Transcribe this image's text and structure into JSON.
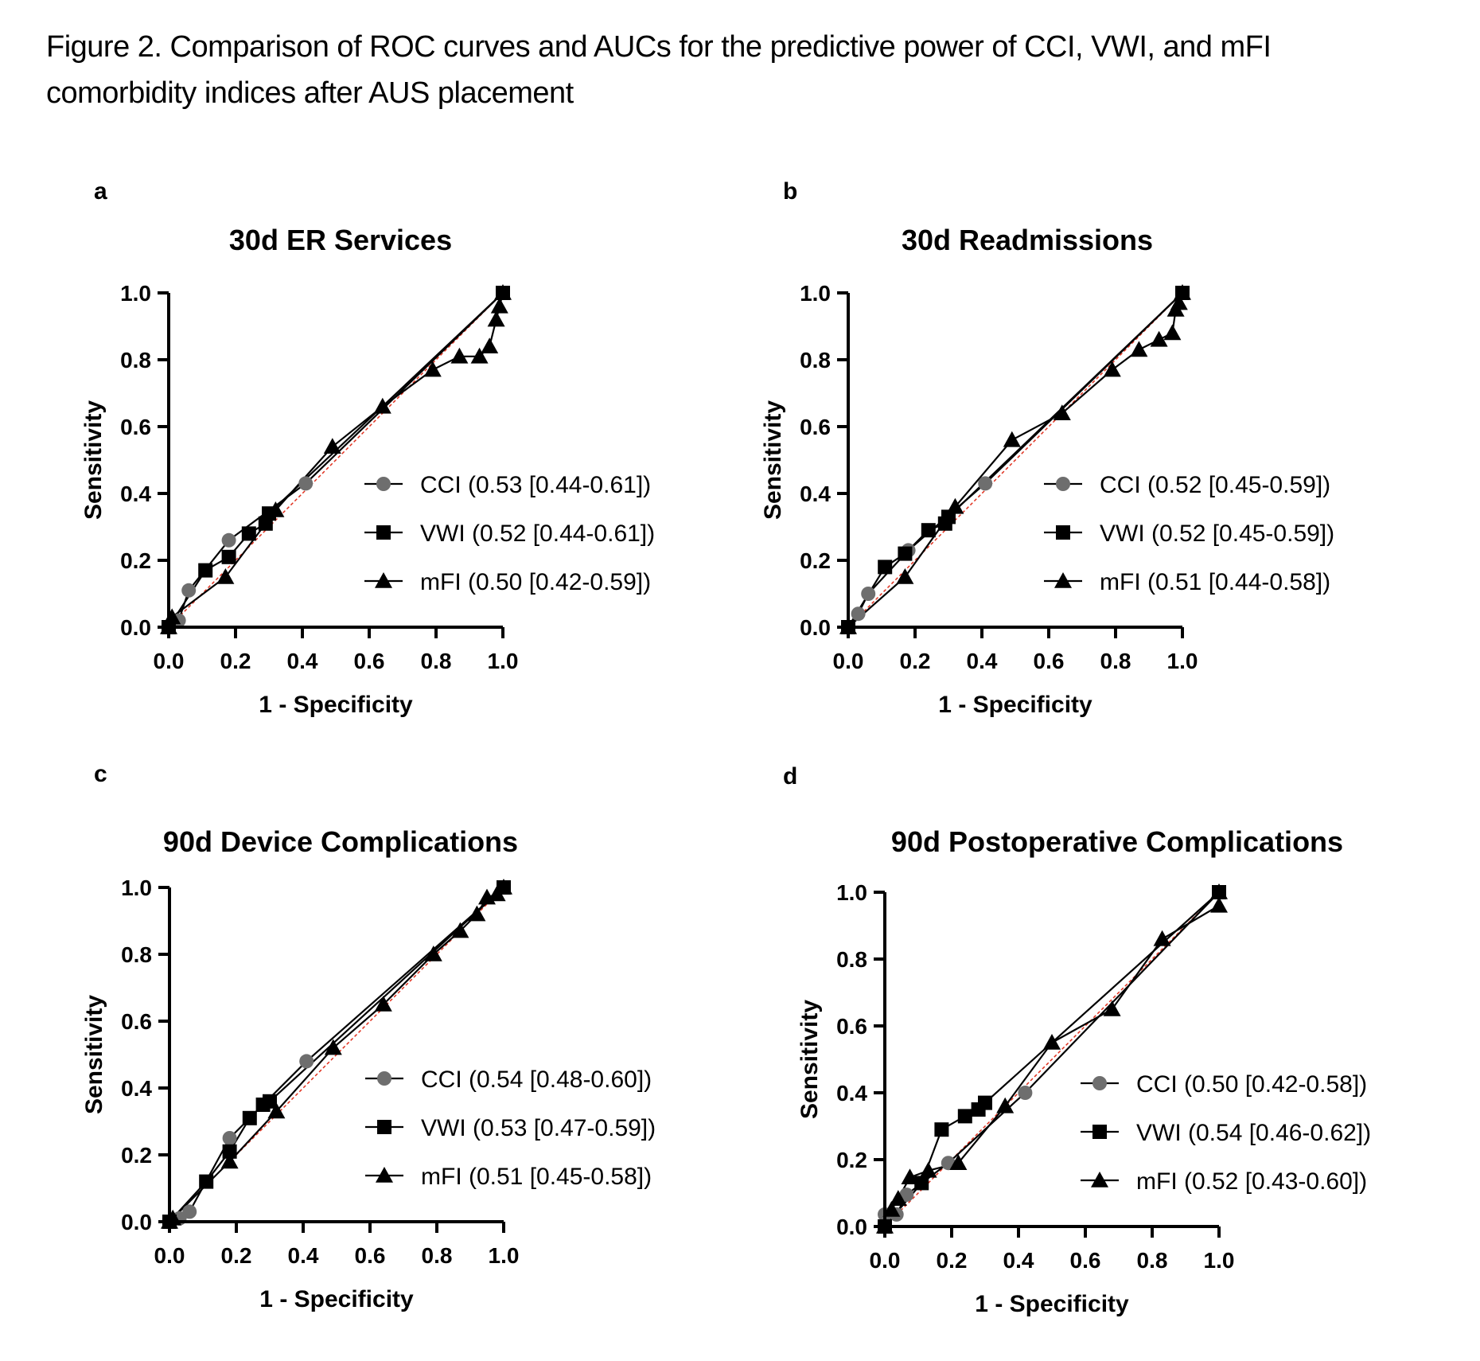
{
  "caption": {
    "line1": "Figure 2. Comparison of ROC curves and AUCs for the predictive power of CCI, VWI, and mFI",
    "line2": "comorbidity indices after AUS placement"
  },
  "colors": {
    "cci": "#6e6e6e",
    "vwi": "#000000",
    "mfi": "#000000",
    "reference": "#e0301e",
    "axis": "#000000"
  },
  "chart_data": [
    {
      "panel": "a",
      "type": "line",
      "title": "30d ER Services",
      "xlabel": "1 - Specificity",
      "ylabel": "Sensitivity",
      "xlim": [
        0,
        1
      ],
      "ylim": [
        0,
        1
      ],
      "xticks": [
        "0.0",
        "0.2",
        "0.4",
        "0.6",
        "0.8",
        "1.0"
      ],
      "yticks": [
        "0.0",
        "0.2",
        "0.4",
        "0.6",
        "0.8",
        "1.0"
      ],
      "grid": false,
      "legend_position": "right-middle",
      "reference_line": [
        [
          0,
          0
        ],
        [
          1,
          1
        ]
      ],
      "series": [
        {
          "name": "CCI",
          "label": "CCI (0.53 [0.44-0.61])",
          "marker": "circle",
          "x": [
            0,
            0.03,
            0.06,
            0.18,
            0.41,
            1.0
          ],
          "y": [
            0,
            0.02,
            0.11,
            0.26,
            0.43,
            1.0
          ]
        },
        {
          "name": "VWI",
          "label": "VWI (0.52 [0.44-0.61])",
          "marker": "square",
          "x": [
            0,
            0.11,
            0.18,
            0.24,
            0.29,
            0.3,
            1.0
          ],
          "y": [
            0,
            0.17,
            0.21,
            0.28,
            0.31,
            0.34,
            1.0
          ]
        },
        {
          "name": "mFI",
          "label": "mFI (0.50 [0.42-0.59])",
          "marker": "triangle",
          "x": [
            0,
            0.01,
            0.17,
            0.32,
            0.49,
            0.64,
            0.79,
            0.87,
            0.93,
            0.96,
            0.98,
            0.99,
            1.0
          ],
          "y": [
            0,
            0.03,
            0.15,
            0.35,
            0.54,
            0.66,
            0.77,
            0.81,
            0.81,
            0.84,
            0.92,
            0.96,
            1.0
          ]
        }
      ]
    },
    {
      "panel": "b",
      "type": "line",
      "title": "30d Readmissions",
      "xlabel": "1 - Specificity",
      "ylabel": "Sensitivity",
      "xlim": [
        0,
        1
      ],
      "ylim": [
        0,
        1
      ],
      "xticks": [
        "0.0",
        "0.2",
        "0.4",
        "0.6",
        "0.8",
        "1.0"
      ],
      "yticks": [
        "0.0",
        "0.2",
        "0.4",
        "0.6",
        "0.8",
        "1.0"
      ],
      "grid": false,
      "legend_position": "right-middle",
      "reference_line": [
        [
          0,
          0
        ],
        [
          1,
          1
        ]
      ],
      "series": [
        {
          "name": "CCI",
          "label": "CCI (0.52 [0.45-0.59])",
          "marker": "circle",
          "x": [
            0,
            0.03,
            0.06,
            0.18,
            0.41,
            1.0
          ],
          "y": [
            0,
            0.04,
            0.1,
            0.23,
            0.43,
            1.0
          ]
        },
        {
          "name": "VWI",
          "label": "VWI (0.52 [0.45-0.59])",
          "marker": "square",
          "x": [
            0,
            0.11,
            0.17,
            0.24,
            0.29,
            0.3,
            1.0
          ],
          "y": [
            0,
            0.18,
            0.22,
            0.29,
            0.31,
            0.33,
            1.0
          ]
        },
        {
          "name": "mFI",
          "label": "mFI (0.51 [0.44-0.58])",
          "marker": "triangle",
          "x": [
            0,
            0.17,
            0.32,
            0.49,
            0.64,
            0.79,
            0.87,
            0.93,
            0.97,
            0.98,
            0.99,
            1.0
          ],
          "y": [
            0,
            0.15,
            0.36,
            0.56,
            0.64,
            0.77,
            0.83,
            0.86,
            0.88,
            0.95,
            0.97,
            1.0
          ]
        }
      ]
    },
    {
      "panel": "c",
      "type": "line",
      "title": "90d Device Complications",
      "xlabel": "1 - Specificity",
      "ylabel": "Sensitivity",
      "xlim": [
        0,
        1
      ],
      "ylim": [
        0,
        1
      ],
      "xticks": [
        "0.0",
        "0.2",
        "0.4",
        "0.6",
        "0.8",
        "1.0"
      ],
      "yticks": [
        "0.0",
        "0.2",
        "0.4",
        "0.6",
        "0.8",
        "1.0"
      ],
      "grid": false,
      "legend_position": "right-middle",
      "reference_line": [
        [
          0,
          0
        ],
        [
          1,
          1
        ]
      ],
      "series": [
        {
          "name": "CCI",
          "label": "CCI (0.54 [0.48-0.60])",
          "marker": "circle",
          "x": [
            0,
            0.03,
            0.06,
            0.18,
            0.41,
            1.0
          ],
          "y": [
            0,
            0.01,
            0.03,
            0.25,
            0.48,
            1.0
          ]
        },
        {
          "name": "VWI",
          "label": "VWI (0.53 [0.47-0.59])",
          "marker": "square",
          "x": [
            0,
            0.11,
            0.18,
            0.24,
            0.28,
            0.3,
            1.0
          ],
          "y": [
            0,
            0.12,
            0.21,
            0.31,
            0.35,
            0.36,
            1.0
          ]
        },
        {
          "name": "mFI",
          "label": "mFI (0.51 [0.45-0.58])",
          "marker": "triangle",
          "x": [
            0,
            0.01,
            0.18,
            0.32,
            0.49,
            0.64,
            0.79,
            0.87,
            0.92,
            0.95,
            0.98,
            1.0
          ],
          "y": [
            0,
            0.01,
            0.18,
            0.33,
            0.52,
            0.65,
            0.8,
            0.87,
            0.92,
            0.97,
            0.98,
            1.0
          ]
        }
      ]
    },
    {
      "panel": "d",
      "type": "line",
      "title": "90d Postoperative Complications",
      "xlabel": "1 - Specificity",
      "ylabel": "Sensitivity",
      "xlim": [
        0,
        1
      ],
      "ylim": [
        0,
        1
      ],
      "xticks": [
        "0.0",
        "0.2",
        "0.4",
        "0.6",
        "0.8",
        "1.0"
      ],
      "yticks": [
        "0.0",
        "0.2",
        "0.4",
        "0.6",
        "0.8",
        "1.0"
      ],
      "grid": false,
      "legend_position": "right-middle",
      "reference_line": [
        [
          0,
          0
        ],
        [
          1,
          1
        ]
      ],
      "series": [
        {
          "name": "CCI",
          "label": "CCI (0.50 [0.42-0.58])",
          "marker": "circle",
          "x": [
            0,
            0.0,
            0.035,
            0.065,
            0.19,
            0.42,
            1.0
          ],
          "y": [
            0,
            0.036,
            0.036,
            0.095,
            0.19,
            0.4,
            1.0
          ]
        },
        {
          "name": "VWI",
          "label": "VWI (0.54 [0.46-0.62])",
          "marker": "square",
          "x": [
            0,
            0.11,
            0.17,
            0.24,
            0.28,
            0.3,
            1.0
          ],
          "y": [
            0,
            0.13,
            0.29,
            0.33,
            0.35,
            0.37,
            1.0
          ]
        },
        {
          "name": "mFI",
          "label": "mFI (0.52 [0.43-0.60])",
          "marker": "triangle",
          "x": [
            0,
            0.02,
            0.04,
            0.075,
            0.13,
            0.22,
            0.36,
            0.5,
            0.68,
            0.83,
            1.0,
            1.0
          ],
          "y": [
            0,
            0.05,
            0.083,
            0.147,
            0.167,
            0.19,
            0.36,
            0.55,
            0.65,
            0.86,
            0.96,
            1.0
          ]
        }
      ]
    }
  ]
}
